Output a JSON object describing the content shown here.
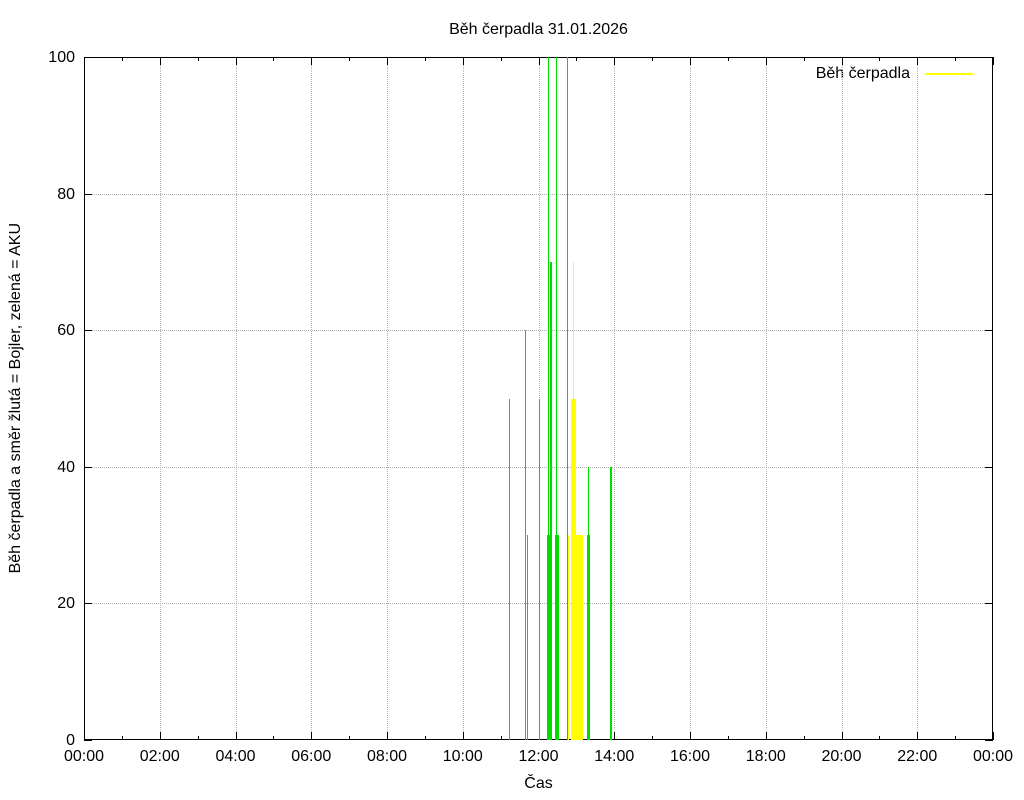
{
  "chart": {
    "title": "Běh čerpadla 31.01.2026",
    "xlabel": "Čas",
    "ylabel": "Běh čerpadla a směr žlutá = Bojler, zelená = AKU",
    "legend_label": "Běh čerpadla"
  },
  "chart_data": {
    "type": "bar",
    "subtype": "time-impulses",
    "title": "Běh čerpadla 31.01.2026",
    "xlabel": "Čas",
    "ylabel": "Běh čerpadla a směr žlutá = Bojler, zelená = AKU",
    "ylim": [
      0,
      100
    ],
    "xlim_minutes": [
      0,
      1440
    ],
    "x_major_tick_minutes": 120,
    "x_minor_tick_minutes": 60,
    "x_tick_labels": [
      "00:00",
      "02:00",
      "04:00",
      "06:00",
      "08:00",
      "10:00",
      "12:00",
      "14:00",
      "16:00",
      "18:00",
      "20:00",
      "22:00",
      "00:00"
    ],
    "y_ticks": [
      0,
      20,
      40,
      60,
      80,
      100
    ],
    "grid": true,
    "legend": {
      "label": "Běh čerpadla",
      "color_key": "bojler_yellow",
      "position": "top-right"
    },
    "colors": {
      "aku_green": "#00dc00",
      "bojler_yellow": "#ffff00",
      "grid": "#b0b0b0",
      "axis": "#000000"
    },
    "series": [
      {
        "name": "AKU (zelená)",
        "color_key": "aku_green",
        "segments": [
          {
            "start": "11:13",
            "end": "11:15",
            "value": 50
          },
          {
            "start": "11:39",
            "end": "11:41",
            "value": 60
          },
          {
            "start": "11:41",
            "end": "11:44",
            "value": 30
          },
          {
            "start": "12:01",
            "end": "12:03",
            "value": 50
          },
          {
            "start": "12:14",
            "end": "12:21",
            "value": 30
          },
          {
            "start": "12:15",
            "end": "12:17",
            "value": 100
          },
          {
            "start": "12:19",
            "end": "12:21",
            "value": 70
          },
          {
            "start": "12:26",
            "end": "12:33",
            "value": 30
          },
          {
            "start": "12:27",
            "end": "12:29",
            "value": 100
          },
          {
            "start": "12:45",
            "end": "12:47",
            "value": 100
          },
          {
            "start": "13:17",
            "end": "13:22",
            "value": 30
          },
          {
            "start": "13:18",
            "end": "13:20",
            "value": 40
          },
          {
            "start": "13:54",
            "end": "13:56",
            "value": 40
          }
        ]
      },
      {
        "name": "Bojler (žlutá)",
        "color_key": "bojler_yellow",
        "segments": [
          {
            "start": "12:46",
            "end": "12:48",
            "value": 30
          },
          {
            "start": "12:51",
            "end": "13:10",
            "value": 30
          },
          {
            "start": "12:51",
            "end": "12:59",
            "value": 50
          },
          {
            "start": "12:55",
            "end": "12:57",
            "value": 70
          }
        ]
      }
    ]
  }
}
